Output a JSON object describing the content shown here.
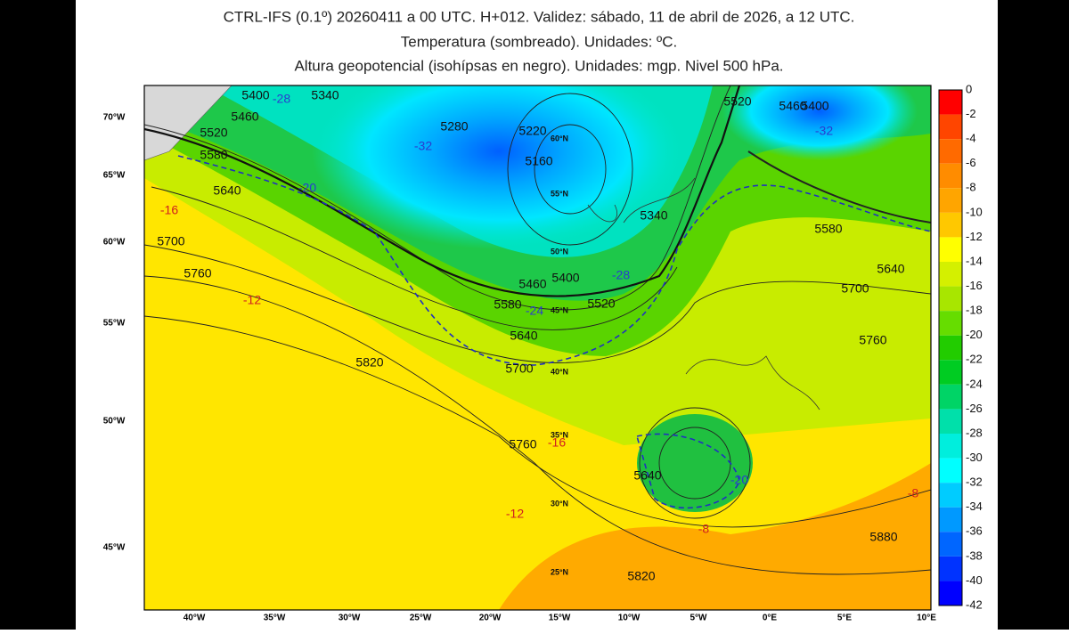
{
  "header": {
    "title_lines": [
      "CTRL-IFS (0.1º) 20260411 a 00 UTC. H+012. Validez: sábado, 11 de abril de 2026, a 12 UTC.",
      "Temperatura (sombreado). Unidades: ºC.",
      "Altura geopotencial (isohípsas en negro). Unidades: mgp. Nivel 500 hPa."
    ]
  },
  "map": {
    "lat_labels": [
      "70°W",
      "65°W",
      "60°W",
      "55°W",
      "50°W",
      "45°W"
    ],
    "lon_labels": [
      "40°W",
      "35°W",
      "30°W",
      "25°W",
      "20°W",
      "15°W",
      "10°W",
      "5°W",
      "0°E",
      "5°E",
      "10°E"
    ],
    "grid_labels": [
      "60°N",
      "55°N",
      "50°N",
      "45°N",
      "40°N",
      "35°N",
      "30°N",
      "25°N"
    ],
    "contour_labels": [
      "5400",
      "5340",
      "5460",
      "5520",
      "5580",
      "5640",
      "5700",
      "5760",
      "5820",
      "5280",
      "5220",
      "5160",
      "5340",
      "5460",
      "5400",
      "5520",
      "5580",
      "5640",
      "5700",
      "5760",
      "5640",
      "5760",
      "5700",
      "5640",
      "5580",
      "5880",
      "5820",
      "5520",
      "5460",
      "5400"
    ],
    "temperature_labels": [
      {
        "text": "-28",
        "color": "#2a3bd0"
      },
      {
        "text": "-32",
        "color": "#2a3bd0"
      },
      {
        "text": "-20",
        "color": "#2a3bd0"
      },
      {
        "text": "-16",
        "color": "#d02020"
      },
      {
        "text": "-12",
        "color": "#d02020"
      },
      {
        "text": "-28",
        "color": "#2a3bd0"
      },
      {
        "text": "-24",
        "color": "#2a3bd0"
      },
      {
        "text": "-16",
        "color": "#d02020"
      },
      {
        "text": "-12",
        "color": "#d02020"
      },
      {
        "text": "-8",
        "color": "#d02020"
      },
      {
        "text": "-20",
        "color": "#2a3bd0"
      },
      {
        "text": "-8",
        "color": "#d02020"
      },
      {
        "text": "-32",
        "color": "#2a3bd0"
      }
    ]
  },
  "colorbar": {
    "labels": [
      0,
      -2,
      -4,
      -6,
      -8,
      -10,
      -12,
      -14,
      -16,
      -18,
      -20,
      -22,
      -24,
      -26,
      -28,
      -30,
      -32,
      -34,
      -36,
      -38,
      -40,
      -42
    ],
    "colors": [
      "#ff0000",
      "#ff4500",
      "#ff6a00",
      "#ff8c00",
      "#ffa500",
      "#ffc800",
      "#ffff00",
      "#d4f000",
      "#a8e600",
      "#66dd00",
      "#22cc00",
      "#00cc22",
      "#00d466",
      "#00e0aa",
      "#00eedd",
      "#00ffff",
      "#00ccff",
      "#0099ff",
      "#0066ff",
      "#0033ff",
      "#0000ff"
    ]
  }
}
